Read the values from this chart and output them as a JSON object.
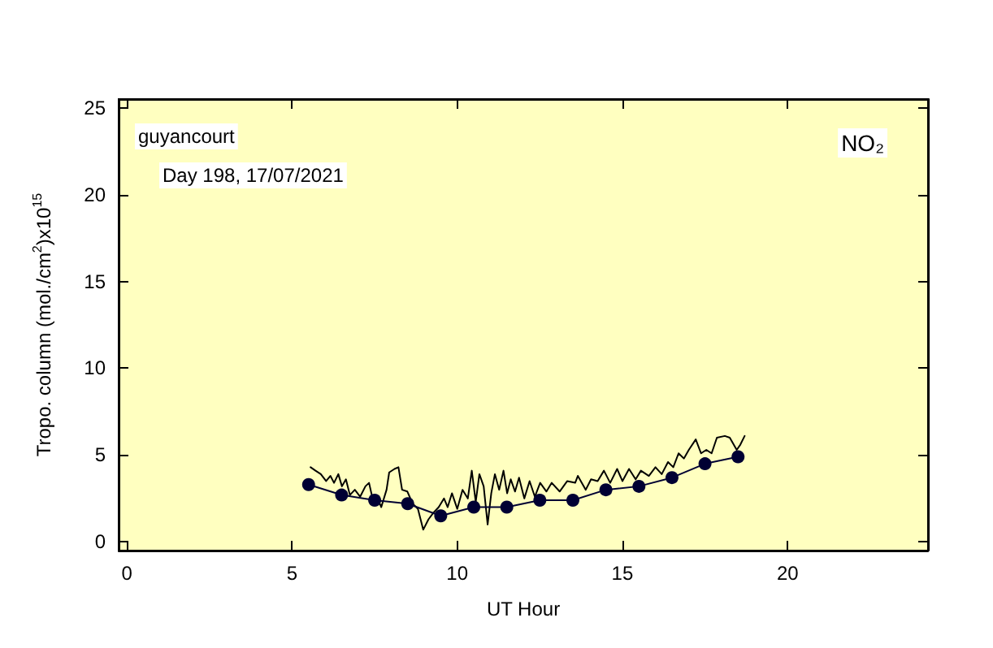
{
  "chart_data": {
    "type": "line",
    "xlabel": "UT Hour",
    "ylabel": "Tropo. column (mol./cm$^{2}$)x10$^{15}$",
    "annotations": [
      "guyancourt",
      "Day 198, 17/07/2021",
      "NO₂"
    ],
    "xlim": [
      -0.25,
      24.25
    ],
    "xticks": [
      0,
      5,
      10,
      15,
      20
    ],
    "ylim": [
      -0.5,
      25.5
    ],
    "yticks": [
      0,
      5,
      10,
      15,
      20,
      25
    ],
    "grid": false,
    "series": [
      {
        "color": "#000000",
        "marker": "none",
        "x": [
          5.56,
          5.71,
          5.87,
          6.03,
          6.16,
          6.27,
          6.4,
          6.51,
          6.63,
          6.75,
          6.9,
          7.06,
          7.22,
          7.33,
          7.46,
          7.59,
          7.7,
          7.86,
          7.94,
          8.1,
          8.22,
          8.33,
          8.49,
          8.65,
          8.81,
          8.97,
          9.13,
          9.29,
          9.44,
          9.6,
          9.71,
          9.84,
          10.0,
          10.16,
          10.32,
          10.44,
          10.56,
          10.67,
          10.8,
          10.92,
          11.03,
          11.14,
          11.27,
          11.4,
          11.51,
          11.62,
          11.75,
          11.87,
          12.03,
          12.19,
          12.35,
          12.51,
          12.7,
          12.86,
          13.1,
          13.33,
          13.57,
          13.65,
          13.89,
          14.05,
          14.25,
          14.44,
          14.63,
          14.84,
          15.0,
          15.2,
          15.4,
          15.56,
          15.8,
          16.0,
          16.19,
          16.38,
          16.54,
          16.7,
          16.86,
          17.01,
          17.22,
          17.38,
          17.54,
          17.7,
          17.86,
          18.1,
          18.25,
          18.46,
          18.57,
          18.7
        ],
        "values": [
          4.3,
          4.1,
          3.9,
          3.5,
          3.8,
          3.4,
          3.9,
          3.2,
          3.6,
          2.7,
          3.0,
          2.6,
          3.2,
          3.4,
          2.3,
          2.5,
          2.0,
          3.0,
          4.0,
          4.2,
          4.3,
          3.0,
          2.9,
          2.2,
          1.9,
          0.7,
          1.3,
          1.7,
          2.0,
          2.5,
          2.0,
          2.8,
          1.9,
          3.0,
          2.5,
          4.1,
          2.3,
          3.9,
          3.2,
          1.0,
          2.8,
          3.9,
          3.0,
          4.1,
          2.8,
          3.6,
          2.9,
          3.7,
          2.5,
          3.5,
          2.6,
          3.4,
          2.9,
          3.4,
          2.9,
          3.5,
          3.4,
          3.8,
          3.0,
          3.6,
          3.5,
          4.1,
          3.4,
          4.2,
          3.5,
          4.2,
          3.6,
          4.1,
          3.8,
          4.3,
          3.9,
          4.6,
          4.3,
          5.1,
          4.8,
          5.3,
          5.9,
          5.1,
          5.3,
          5.1,
          6.0,
          6.1,
          6.0,
          5.3,
          5.6,
          6.1
        ]
      },
      {
        "color": "#000033",
        "marker": "circle",
        "x": [
          5.5,
          6.5,
          7.5,
          8.5,
          9.5,
          10.5,
          11.5,
          12.5,
          13.5,
          14.5,
          15.5,
          16.5,
          17.5,
          18.5
        ],
        "values": [
          3.3,
          2.7,
          2.4,
          2.2,
          1.5,
          2.0,
          2.0,
          2.4,
          2.4,
          3.0,
          3.2,
          3.7,
          4.5,
          4.9
        ]
      }
    ]
  }
}
